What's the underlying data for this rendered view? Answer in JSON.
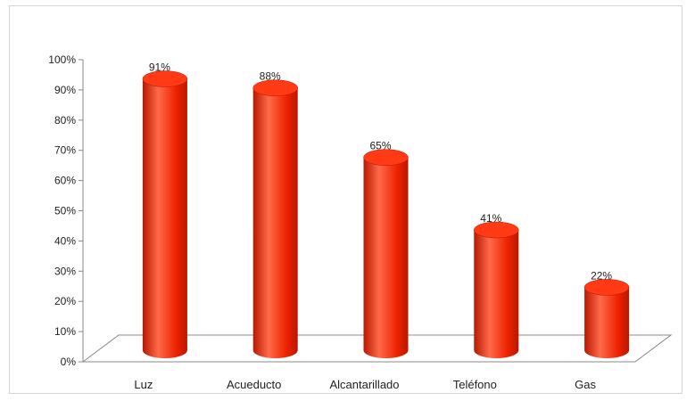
{
  "chart_data": {
    "type": "bar",
    "style": "3d-cylinder",
    "categories": [
      "Luz",
      "Acueducto",
      "Alcantarillado",
      "Teléfono",
      "Gas"
    ],
    "values": [
      91,
      88,
      65,
      41,
      22
    ],
    "data_labels": [
      "91%",
      "88%",
      "65%",
      "41%",
      "22%"
    ],
    "y_ticks": [
      "0%",
      "10%",
      "20%",
      "30%",
      "40%",
      "50%",
      "60%",
      "70%",
      "80%",
      "90%",
      "100%"
    ],
    "ylim": [
      0,
      100
    ],
    "y_unit": "%",
    "title": "",
    "xlabel": "",
    "ylabel": "",
    "grid": false,
    "legend": "none",
    "colors": {
      "bar": "#ee2200",
      "bar_dark": "#b81800",
      "bar_light": "#ff6a4a",
      "bar_top": "#ff3a14",
      "axis": "#888888"
    }
  }
}
